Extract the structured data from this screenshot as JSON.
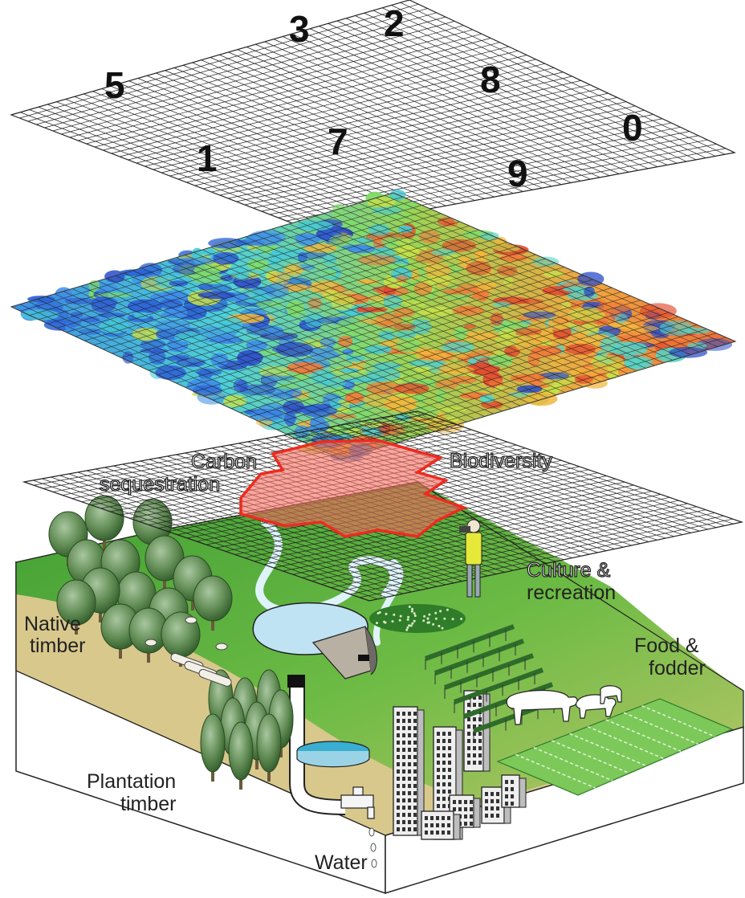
{
  "top_layer": {
    "numbers": [
      "5",
      "3",
      "2",
      "8",
      "0",
      "1",
      "7",
      "9"
    ]
  },
  "service_labels": {
    "carbon_line1": "Carbon",
    "carbon_line2": "sequestration",
    "biodiversity": "Biodiversity",
    "culture_line1": "Culture &",
    "culture_line2": "recreation"
  },
  "landscape_labels": {
    "native_line1": "Native",
    "native_line2": "timber",
    "plantation_line1": "Plantation",
    "plantation_line2": "timber",
    "food_line1": "Food &",
    "food_line2": "fodder",
    "water": "Water"
  },
  "colors": {
    "grid_line": "#222222",
    "highlight_fill": "#f46a5e",
    "highlight_stroke": "#ee2a1f",
    "grass": "#46a83c",
    "ground_tan": "#d9c98e",
    "block_side": "#ffffff"
  }
}
